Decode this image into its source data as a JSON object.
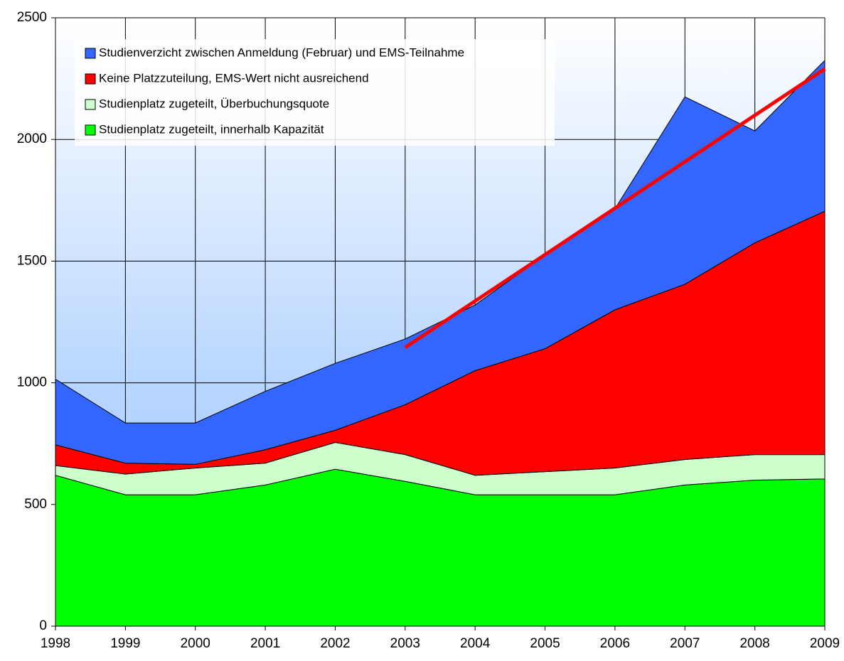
{
  "chart_data": {
    "type": "stacked_area",
    "x": [
      1998,
      1999,
      2000,
      2001,
      2002,
      2003,
      2004,
      2005,
      2006,
      2007,
      2008,
      2009
    ],
    "series": [
      {
        "name": "Studienplatz zugeteilt, innerhalb Kapazität",
        "color": "#00ff00",
        "values": [
          620,
          540,
          540,
          580,
          645,
          595,
          540,
          540,
          540,
          580,
          600,
          605
        ]
      },
      {
        "name": "Studienplatz zugeteilt, Überbuchungsquote",
        "color": "#ccffcc",
        "values": [
          40,
          85,
          110,
          90,
          110,
          110,
          80,
          95,
          110,
          105,
          105,
          100
        ]
      },
      {
        "name": "Keine Platzzuteilung, EMS-Wert nicht ausreichend",
        "color": "#ff0000",
        "values": [
          85,
          45,
          15,
          55,
          50,
          205,
          430,
          505,
          650,
          720,
          870,
          1000
        ]
      },
      {
        "name": "Studienverzicht zwischen Anmeldung (Februar) und EMS-Teilnahme",
        "color": "#3366ff",
        "values": [
          270,
          165,
          170,
          240,
          275,
          270,
          270,
          385,
          415,
          770,
          460,
          620
        ]
      }
    ],
    "trendline": {
      "x": [
        2003,
        2009
      ],
      "values": [
        1145,
        2290
      ],
      "color": "#ff0000"
    },
    "xlim": [
      1998,
      2009
    ],
    "xticks": [
      1998,
      1999,
      2000,
      2001,
      2002,
      2003,
      2004,
      2005,
      2006,
      2007,
      2008,
      2009
    ],
    "ylim": [
      0,
      2500
    ],
    "yticks": [
      0,
      500,
      1000,
      1500,
      2000,
      2500
    ],
    "grid": true,
    "legend": "upper left"
  }
}
